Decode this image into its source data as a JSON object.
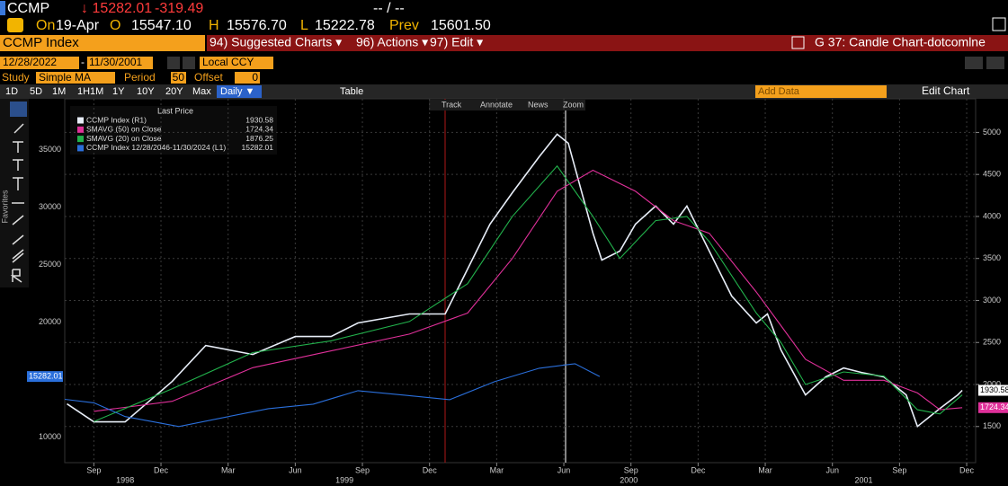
{
  "header": {
    "ticker": "CCMP",
    "last": "↓ 15282.01",
    "change": "-319.49",
    "bid_ask": "-- / --",
    "on_label": "On",
    "date": "19-Apr",
    "open_label": "O",
    "open": "15547.10",
    "high_label": "H",
    "high": "15576.70",
    "low_label": "L",
    "low": "15222.78",
    "prev_label": "Prev",
    "prev": "15601.50"
  },
  "menu": {
    "security": "CCMP Index",
    "items": [
      "94) Suggested Charts ▾",
      "96) Actions ▾",
      "97) Edit ▾"
    ],
    "chart_name": "G 37: Candle Chart-dotcomlne"
  },
  "controls": {
    "start_date": "12/28/2022",
    "separator": "-",
    "end_date": "11/30/2001",
    "currency": "Local CCY",
    "study_label": "Study",
    "study": "Simple MA",
    "period_label": "Period",
    "period": "50",
    "offset_label": "Offset",
    "offset": "0",
    "ranges": [
      "1D",
      "5D",
      "1M",
      "1H1M",
      "1Y",
      "10Y",
      "20Y",
      "Max"
    ],
    "frequency": "Daily ▼",
    "table": "Table",
    "add_data": "Add Data",
    "edit_chart": "Edit Chart"
  },
  "chart_tools": [
    "Track",
    "Annotate",
    "News",
    "Zoom"
  ],
  "sidebar_label": "Favorites",
  "chart_data": {
    "type": "line",
    "legend_title": "Last Price",
    "grid": true,
    "xlim": [
      6.7,
      47.4
    ],
    "xticks": [
      {
        "value": 8,
        "label": "Sep"
      },
      {
        "value": 11,
        "label": "Dec"
      },
      {
        "value": 14,
        "label": "Mar"
      },
      {
        "value": 17,
        "label": "Jun"
      },
      {
        "value": 20,
        "label": "Sep"
      },
      {
        "value": 23,
        "label": "Dec"
      },
      {
        "value": 26,
        "label": "Mar"
      },
      {
        "value": 29,
        "label": "Jun"
      },
      {
        "value": 32,
        "label": "Sep"
      },
      {
        "value": 35,
        "label": "Dec"
      },
      {
        "value": 38,
        "label": "Mar"
      },
      {
        "value": 41,
        "label": "Jun"
      },
      {
        "value": 44,
        "label": "Sep"
      },
      {
        "value": 47,
        "label": "Dec"
      }
    ],
    "years": [
      {
        "value": 9.4,
        "label": "1998"
      },
      {
        "value": 19.2,
        "label": "1999"
      },
      {
        "value": 31.9,
        "label": "2000"
      },
      {
        "value": 42.4,
        "label": "2001"
      }
    ],
    "ylim": [
      7800,
      39400
    ],
    "yticks": [
      10000,
      15000,
      20000,
      25000,
      30000,
      35000
    ],
    "y2lim": [
      1070,
      5400
    ],
    "y2ticks": [
      1500,
      2000,
      2500,
      3000,
      3500,
      4000,
      4500,
      5000
    ],
    "series": [
      {
        "name": "CCMP Index  (R1)",
        "color": "#e8eef8",
        "axis": "y2",
        "x": [
          6.8,
          8,
          9.4,
          11.5,
          13,
          15.1,
          17,
          18.6,
          19.8,
          22.1,
          23.7,
          24.7,
          25.7,
          26.7,
          27.9,
          28.7,
          29.2,
          30.3,
          30.7,
          31.5,
          32.2,
          33.1,
          33.9,
          34.5,
          35.5,
          36.5,
          37.6,
          38.1,
          38.7,
          39.8,
          40.7,
          41.5,
          42.3,
          43.3,
          44.3,
          44.8,
          45.8,
          46.6,
          46.8
        ],
        "values": [
          1769,
          1555,
          1555,
          2036,
          2464,
          2357,
          2571,
          2571,
          2732,
          2839,
          2839,
          3374,
          3909,
          4283,
          4711,
          4979,
          4872,
          3802,
          3481,
          3588,
          3909,
          4123,
          3909,
          4123,
          3588,
          3053,
          2732,
          2839,
          2411,
          1876,
          2090,
          2197,
          2143,
          2090,
          1876,
          1501,
          1715,
          1876,
          1930.58
        ]
      },
      {
        "name": "SMAVG (50)  on Close",
        "color": "#e0309a",
        "axis": "y2",
        "x": [
          8,
          11.5,
          15.1,
          18.6,
          22.1,
          24.7,
          26.7,
          28.7,
          30.3,
          32.2,
          33.9,
          35.5,
          37.6,
          38.7,
          39.8,
          41.5,
          43.3,
          44.8,
          45.8,
          46.8
        ],
        "values": [
          1680,
          1800,
          2200,
          2400,
          2600,
          2850,
          3500,
          4300,
          4550,
          4300,
          3950,
          3800,
          3100,
          2700,
          2300,
          2050,
          2050,
          1900,
          1700,
          1724.34
        ]
      },
      {
        "name": "SMAVG (20)  on Close",
        "color": "#22b24c",
        "axis": "y2",
        "x": [
          8,
          11.5,
          15.1,
          18.6,
          22.1,
          24.7,
          26.7,
          28.7,
          30.3,
          31.5,
          33.1,
          34.5,
          35.5,
          37.6,
          38.7,
          39.8,
          41.5,
          43.3,
          44.8,
          45.8,
          46.8
        ],
        "values": [
          1560,
          1950,
          2380,
          2520,
          2750,
          3200,
          4000,
          4600,
          4000,
          3500,
          3950,
          4000,
          3700,
          2850,
          2500,
          2000,
          2150,
          2100,
          1700,
          1650,
          1876.25
        ]
      },
      {
        "name": "CCMP Index 12/28/2046-11/30/2024  (L1)",
        "color": "#2a6fdb",
        "axis": "y",
        "x": [
          6.7,
          8,
          9.4,
          11.8,
          13.8,
          15.8,
          17.8,
          19.8,
          21.9,
          23.9,
          25.9,
          27.9,
          29.5,
          30.6
        ],
        "values": [
          13300,
          13000,
          11800,
          10935,
          11714,
          12493,
          12882,
          14050,
          13661,
          13272,
          14830,
          16000,
          16388,
          15282.01
        ]
      }
    ]
  }
}
